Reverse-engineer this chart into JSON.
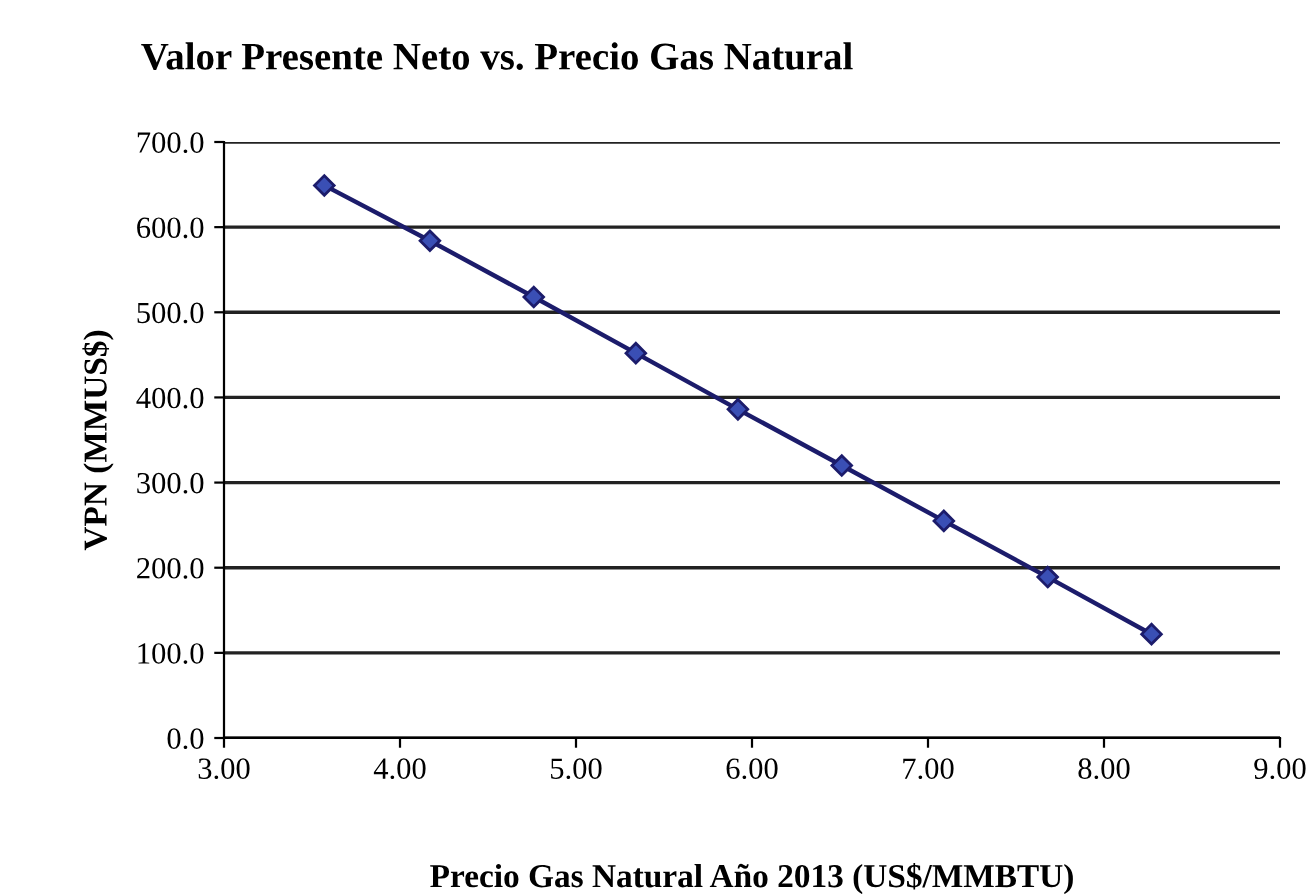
{
  "chart_data": {
    "type": "line",
    "title": "Valor Presente Neto vs. Precio Gas Natural",
    "xlabel": "Precio Gas Natural Año 2013 (US$/MMBTU)",
    "ylabel": "VPN (MMUS$)",
    "x": [
      3.57,
      4.17,
      4.76,
      5.34,
      5.92,
      6.51,
      7.09,
      7.68,
      8.27
    ],
    "series": [
      {
        "color": "#1c1c6b",
        "values": [
          649,
          584,
          518,
          452,
          386,
          320,
          255,
          189,
          122
        ]
      }
    ],
    "xlim": [
      3,
      9
    ],
    "xticks": [
      {
        "value": 3,
        "label": "3.00"
      },
      {
        "value": 4,
        "label": "4.00"
      },
      {
        "value": 5,
        "label": "5.00"
      },
      {
        "value": 6,
        "label": "6.00"
      },
      {
        "value": 7,
        "label": "7.00"
      },
      {
        "value": 8,
        "label": "8.00"
      },
      {
        "value": 9,
        "label": "9.00"
      }
    ],
    "ylim": [
      0,
      700
    ],
    "yticks": [
      {
        "value": 0,
        "label": "0.0"
      },
      {
        "value": 100,
        "label": "100.0"
      },
      {
        "value": 200,
        "label": "200.0"
      },
      {
        "value": 300,
        "label": "300.0"
      },
      {
        "value": 400,
        "label": "400.0"
      },
      {
        "value": 500,
        "label": "500.0"
      },
      {
        "value": 600,
        "label": "600.0"
      },
      {
        "value": 700,
        "label": "700.0"
      }
    ],
    "grid": "y",
    "marker": "diamond",
    "line_style": "solid"
  }
}
